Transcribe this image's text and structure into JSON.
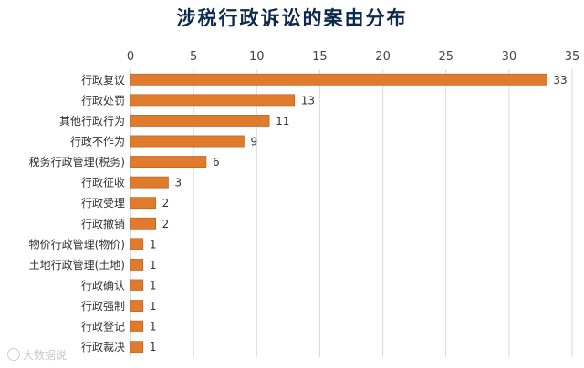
{
  "chart_data": {
    "type": "bar",
    "orientation": "horizontal",
    "title": "涉税行政诉讼的案由分布",
    "categories": [
      "行政复议",
      "行政处罚",
      "其他行政行为",
      "行政不作为",
      "税务行政管理(税务)",
      "行政征收",
      "行政受理",
      "行政撤销",
      "物价行政管理(物价)",
      "土地行政管理(土地)",
      "行政确认",
      "行政强制",
      "行政登记",
      "行政裁决"
    ],
    "values": [
      33,
      13,
      11,
      9,
      6,
      3,
      2,
      2,
      1,
      1,
      1,
      1,
      1,
      1
    ],
    "xlim": [
      0,
      35
    ],
    "xticks": [
      0,
      5,
      10,
      15,
      20,
      25,
      30,
      35
    ],
    "x_axis_position": "top",
    "grid": true,
    "legend": "none",
    "bar_color": "#e07b2e",
    "bar_edge_color": "#b55a1a",
    "data_labels": true
  },
  "watermark": {
    "text": "大数据说"
  }
}
